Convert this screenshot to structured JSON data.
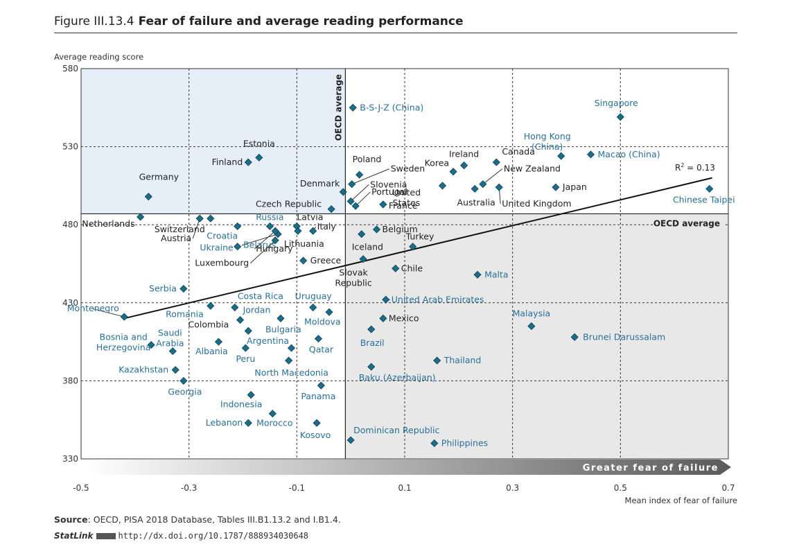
{
  "figure": {
    "number": "Figure III.13.4",
    "title": "Fear of failure and average reading performance"
  },
  "source": {
    "label": "Source",
    "text": ": OECD, PISA 2018 Database, Tables III.B1.13.2 and I.B1.4."
  },
  "statlink": {
    "label": "StatLink",
    "url": "http://dx.doi.org/10.1787/888934030648"
  },
  "colors": {
    "marker": "#1a6e8a",
    "label_partner": "#2a6f98",
    "label_oecd": "#222222",
    "quad_blue": "#e6eff8",
    "quad_grey": "#e8e8e8"
  },
  "chart_data": {
    "type": "scatter",
    "xlabel": "Mean index of fear of failure",
    "ylabel": "Average reading score",
    "xlim": [
      -0.5,
      0.7
    ],
    "ylim": [
      330,
      580
    ],
    "xticks": [
      "-0.5",
      "-0.3",
      "-0.1",
      "0.1",
      "0.3",
      "0.5",
      "0.7"
    ],
    "yticks": [
      "330",
      "380",
      "430",
      "480",
      "530",
      "580"
    ],
    "oecd_average": {
      "x": -0.01,
      "y": 487,
      "x_label": "OECD average",
      "y_label": "OECD average"
    },
    "trend": {
      "x1": -0.42,
      "y1": 420,
      "x2": 0.67,
      "y2": 510,
      "r2_label": "R",
      "r2_sup": "2",
      "r2_value": " = 0.13"
    },
    "arrow_label": "Greater fear of failure",
    "points": [
      {
        "name": "B-S-J-Z (China)",
        "x": 0.004,
        "y": 555,
        "oecd": false
      },
      {
        "name": "Singapore",
        "x": 0.5,
        "y": 549,
        "oecd": false
      },
      {
        "name": "Macao (China)",
        "x": 0.445,
        "y": 525,
        "oecd": false
      },
      {
        "name": "Hong Kong (China)",
        "x": 0.39,
        "y": 524,
        "oecd": false
      },
      {
        "name": "Chinese Taipei",
        "x": 0.665,
        "y": 503,
        "oecd": false
      },
      {
        "name": "Estonia",
        "x": -0.17,
        "y": 523,
        "oecd": true
      },
      {
        "name": "Finland",
        "x": -0.19,
        "y": 520,
        "oecd": true
      },
      {
        "name": "Germany",
        "x": -0.375,
        "y": 498,
        "oecd": true
      },
      {
        "name": "Canada",
        "x": 0.27,
        "y": 520,
        "oecd": true
      },
      {
        "name": "Ireland",
        "x": 0.21,
        "y": 518,
        "oecd": true
      },
      {
        "name": "Korea",
        "x": 0.19,
        "y": 514,
        "oecd": true
      },
      {
        "name": "Poland",
        "x": 0.016,
        "y": 512,
        "oecd": true
      },
      {
        "name": "Sweden",
        "x": 0.002,
        "y": 506,
        "oecd": true
      },
      {
        "name": "Denmark",
        "x": -0.014,
        "y": 501,
        "oecd": true
      },
      {
        "name": "Slovenia",
        "x": 0.0,
        "y": 495,
        "oecd": true
      },
      {
        "name": "Portugal",
        "x": 0.009,
        "y": 492,
        "oecd": true
      },
      {
        "name": "Czech Republic",
        "x": -0.036,
        "y": 490,
        "oecd": true
      },
      {
        "name": "France",
        "x": 0.06,
        "y": 493,
        "oecd": true
      },
      {
        "name": "New Zealand",
        "x": 0.245,
        "y": 506,
        "oecd": true
      },
      {
        "name": "Australia",
        "x": 0.23,
        "y": 503,
        "oecd": true
      },
      {
        "name": "United States",
        "x": 0.17,
        "y": 505,
        "oecd": true
      },
      {
        "name": "United Kingdom",
        "x": 0.275,
        "y": 504,
        "oecd": true
      },
      {
        "name": "Japan",
        "x": 0.38,
        "y": 504,
        "oecd": true
      },
      {
        "name": "Netherlands",
        "x": -0.39,
        "y": 485,
        "oecd": true
      },
      {
        "name": "Switzerland",
        "x": -0.26,
        "y": 484,
        "oecd": true
      },
      {
        "name": "Austria",
        "x": -0.28,
        "y": 484,
        "oecd": true
      },
      {
        "name": "Croatia",
        "x": -0.21,
        "y": 479,
        "oecd": false
      },
      {
        "name": "Russia",
        "x": -0.15,
        "y": 479,
        "oecd": false
      },
      {
        "name": "Belarus",
        "x": -0.135,
        "y": 474,
        "oecd": false
      },
      {
        "name": "Ukraine",
        "x": -0.21,
        "y": 466,
        "oecd": false
      },
      {
        "name": "Hungary",
        "x": -0.14,
        "y": 476,
        "oecd": true
      },
      {
        "name": "Luxembourg",
        "x": -0.14,
        "y": 470,
        "oecd": true
      },
      {
        "name": "Latvia",
        "x": -0.1,
        "y": 479,
        "oecd": true
      },
      {
        "name": "Lithuania",
        "x": -0.098,
        "y": 476,
        "oecd": true
      },
      {
        "name": "Italy",
        "x": -0.07,
        "y": 476,
        "oecd": true
      },
      {
        "name": "Iceland",
        "x": 0.02,
        "y": 474,
        "oecd": true
      },
      {
        "name": "Belgium",
        "x": 0.048,
        "y": 477,
        "oecd": true
      },
      {
        "name": "Greece",
        "x": -0.088,
        "y": 457,
        "oecd": true
      },
      {
        "name": "Slovak Republic",
        "x": 0.023,
        "y": 458,
        "oecd": true
      },
      {
        "name": "Turkey",
        "x": 0.115,
        "y": 466,
        "oecd": true
      },
      {
        "name": "Chile",
        "x": 0.083,
        "y": 452,
        "oecd": true
      },
      {
        "name": "Malta",
        "x": 0.235,
        "y": 448,
        "oecd": false
      },
      {
        "name": "Serbia",
        "x": -0.31,
        "y": 439,
        "oecd": false
      },
      {
        "name": "Montenegro",
        "x": -0.42,
        "y": 421,
        "oecd": false
      },
      {
        "name": "Romania",
        "x": -0.26,
        "y": 428,
        "oecd": false
      },
      {
        "name": "Costa Rica",
        "x": -0.215,
        "y": 427,
        "oecd": false
      },
      {
        "name": "Jordan",
        "x": -0.205,
        "y": 419,
        "oecd": false
      },
      {
        "name": "Colombia",
        "x": -0.19,
        "y": 412,
        "oecd": true
      },
      {
        "name": "Bulgaria",
        "x": -0.13,
        "y": 420,
        "oecd": false
      },
      {
        "name": "Uruguay",
        "x": -0.07,
        "y": 427,
        "oecd": false
      },
      {
        "name": "Moldova",
        "x": -0.04,
        "y": 424,
        "oecd": false
      },
      {
        "name": "United Arab Emirates",
        "x": 0.065,
        "y": 432,
        "oecd": false
      },
      {
        "name": "Mexico",
        "x": 0.06,
        "y": 420,
        "oecd": true
      },
      {
        "name": "Brazil",
        "x": 0.038,
        "y": 413,
        "oecd": false
      },
      {
        "name": "Malaysia",
        "x": 0.335,
        "y": 415,
        "oecd": false
      },
      {
        "name": "Brunei Darussalam",
        "x": 0.415,
        "y": 408,
        "oecd": false
      },
      {
        "name": "Bosnia and Herzegovina",
        "x": -0.37,
        "y": 403,
        "oecd": false
      },
      {
        "name": "Saudi Arabia",
        "x": -0.33,
        "y": 399,
        "oecd": false
      },
      {
        "name": "Albania",
        "x": -0.245,
        "y": 405,
        "oecd": false
      },
      {
        "name": "Peru",
        "x": -0.195,
        "y": 401,
        "oecd": false
      },
      {
        "name": "Argentina",
        "x": -0.11,
        "y": 401,
        "oecd": false
      },
      {
        "name": "Qatar",
        "x": -0.06,
        "y": 407,
        "oecd": false
      },
      {
        "name": "North Macedonia",
        "x": -0.115,
        "y": 393,
        "oecd": false
      },
      {
        "name": "Thailand",
        "x": 0.16,
        "y": 393,
        "oecd": false
      },
      {
        "name": "Kazakhstan",
        "x": -0.325,
        "y": 387,
        "oecd": false
      },
      {
        "name": "Georgia",
        "x": -0.31,
        "y": 380,
        "oecd": false
      },
      {
        "name": "Baku (Azerbaijan)",
        "x": 0.038,
        "y": 389,
        "oecd": false
      },
      {
        "name": "Panama",
        "x": -0.055,
        "y": 377,
        "oecd": false
      },
      {
        "name": "Indonesia",
        "x": -0.185,
        "y": 371,
        "oecd": false
      },
      {
        "name": "Morocco",
        "x": -0.145,
        "y": 359,
        "oecd": false
      },
      {
        "name": "Lebanon",
        "x": -0.19,
        "y": 353,
        "oecd": false
      },
      {
        "name": "Kosovo",
        "x": -0.063,
        "y": 353,
        "oecd": false
      },
      {
        "name": "Dominican Republic",
        "x": 0.0,
        "y": 342,
        "oecd": false
      },
      {
        "name": "Philippines",
        "x": 0.155,
        "y": 340,
        "oecd": false
      }
    ]
  }
}
